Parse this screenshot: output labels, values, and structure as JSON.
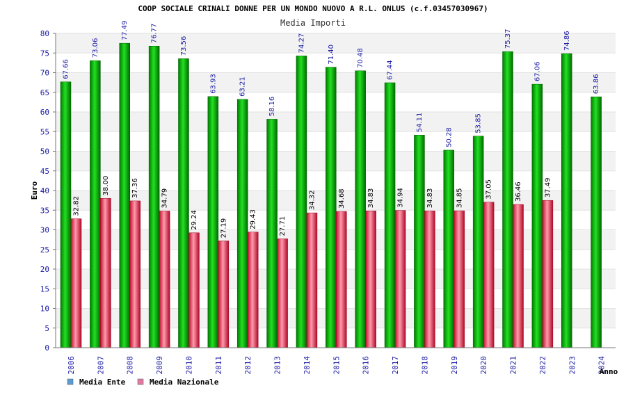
{
  "chart_data": {
    "type": "bar",
    "title": "COOP SOCIALE CRINALI DONNE PER UN MONDO NUOVO A R.L. ONLUS (c.f.03457030967)",
    "subtitle": "Media Importi",
    "xlabel": "Anno",
    "ylabel": "Euro",
    "ylim": [
      0,
      80
    ],
    "yticks": [
      0,
      5,
      10,
      15,
      20,
      25,
      30,
      35,
      40,
      45,
      50,
      55,
      60,
      65,
      70,
      75,
      80
    ],
    "categories": [
      "2006",
      "2007",
      "2008",
      "2009",
      "2010",
      "2011",
      "2012",
      "2013",
      "2014",
      "2015",
      "2016",
      "2017",
      "2018",
      "2019",
      "2020",
      "2021",
      "2022",
      "2023",
      "2024"
    ],
    "series": [
      {
        "name": "Media Ente",
        "color": "#00c000",
        "values": [
          67.66,
          73.06,
          77.49,
          76.77,
          73.56,
          63.93,
          63.21,
          58.16,
          74.27,
          71.4,
          70.48,
          67.44,
          54.11,
          50.28,
          53.85,
          75.37,
          67.06,
          74.86,
          63.86
        ],
        "labels": [
          "67.66",
          "73.06",
          "77.49",
          "76.77",
          "73.56",
          "63.93",
          "63.21",
          "58.16",
          "74.27",
          "71.40",
          "70.48",
          "67.44",
          "54.11",
          "50.28",
          "53.85",
          "75.37",
          "67.06",
          "74.86",
          "63.86"
        ]
      },
      {
        "name": "Media Nazionale",
        "color": "#e0405a",
        "values": [
          32.82,
          38.0,
          37.36,
          34.79,
          29.24,
          27.19,
          29.43,
          27.71,
          34.32,
          34.68,
          34.83,
          34.94,
          34.83,
          34.85,
          37.05,
          36.46,
          37.49,
          null,
          null
        ],
        "labels": [
          "32.82",
          "38.00",
          "37.36",
          "34.79",
          "29.24",
          "27.19",
          "29.43",
          "27.71",
          "34.32",
          "34.68",
          "34.83",
          "34.94",
          "34.83",
          "34.85",
          "37.05",
          "36.46",
          "37.49",
          "",
          ""
        ]
      }
    ],
    "grid": true,
    "grid_style": "alternating horizontal bands",
    "legend": {
      "placement": "bottom-left",
      "items": [
        {
          "label": "Media Ente",
          "color": "#5b9bd5"
        },
        {
          "label": "Media Nazionale",
          "color": "#e07aa0"
        }
      ]
    }
  }
}
